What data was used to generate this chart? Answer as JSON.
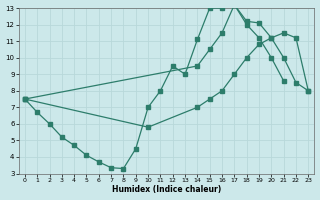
{
  "xlabel": "Humidex (Indice chaleur)",
  "color": "#2d7d6b",
  "bg_color": "#cce8ea",
  "grid_color": "#b8d8da",
  "xlim": [
    -0.5,
    23.5
  ],
  "ylim": [
    3,
    13
  ],
  "xticks": [
    0,
    1,
    2,
    3,
    4,
    5,
    6,
    7,
    8,
    9,
    10,
    11,
    12,
    13,
    14,
    15,
    16,
    17,
    18,
    19,
    20,
    21,
    22,
    23
  ],
  "yticks": [
    3,
    4,
    5,
    6,
    7,
    8,
    9,
    10,
    11,
    12,
    13
  ],
  "line1": {
    "x": [
      0,
      1,
      2,
      3,
      4,
      5,
      6,
      7,
      8,
      9,
      10,
      11,
      12,
      13,
      14,
      15,
      16,
      17,
      18,
      19,
      20,
      21
    ],
    "y": [
      7.5,
      6.7,
      6.0,
      5.2,
      4.7,
      4.1,
      3.7,
      3.35,
      3.3,
      4.5,
      7.0,
      8.0,
      9.5,
      9.0,
      11.1,
      13.0,
      13.0,
      13.2,
      12.0,
      11.2,
      10.0,
      8.6
    ]
  },
  "line2": {
    "x": [
      0,
      10,
      14,
      15,
      16,
      17,
      18,
      19,
      20,
      21,
      22,
      23
    ],
    "y": [
      7.5,
      5.8,
      7.0,
      7.5,
      8.0,
      9.0,
      10.0,
      10.8,
      11.2,
      11.5,
      11.2,
      8.0
    ]
  },
  "line3": {
    "x": [
      0,
      14,
      15,
      16,
      17,
      18,
      19,
      20,
      21,
      22,
      23
    ],
    "y": [
      7.5,
      9.5,
      10.5,
      11.5,
      13.2,
      12.2,
      12.1,
      11.2,
      10.0,
      8.5,
      8.0
    ]
  }
}
